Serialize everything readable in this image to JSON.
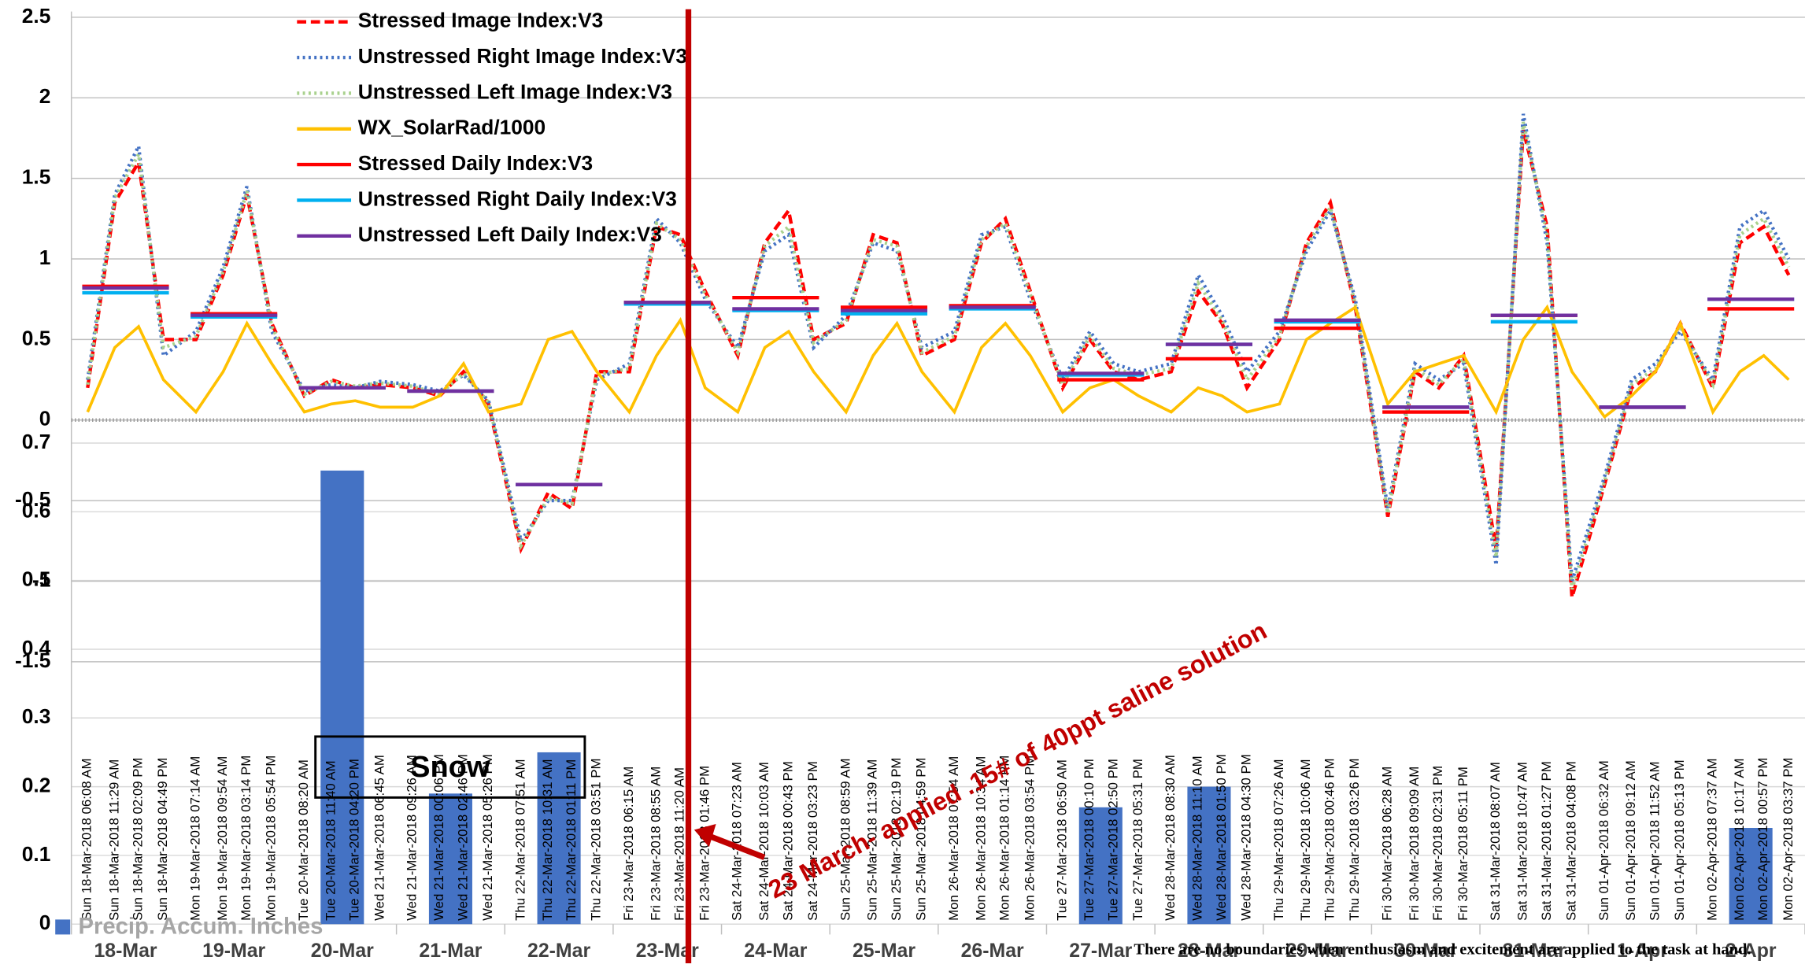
{
  "chart_data": [
    {
      "type": "line",
      "categories": [
        "Sun 18-Mar-2018 06:08 AM",
        "Sun 18-Mar-2018 11:29 AM",
        "Sun 18-Mar-2018 02:09 PM",
        "Sun 18-Mar-2018 04:49 PM",
        "Mon 19-Mar-2018 07:14 AM",
        "Mon 19-Mar-2018 09:54 AM",
        "Mon 19-Mar-2018 03:14 PM",
        "Mon 19-Mar-2018 05:54 PM",
        "Tue 20-Mar-2018 08:20 AM",
        "Tue 20-Mar-2018 11:40 AM",
        "Tue 20-Mar-2018 04:20 PM",
        "Wed 21-Mar-2018 06:45 AM",
        "Wed 21-Mar-2018 09:26 AM",
        "Wed 21-Mar-2018 00:06 PM",
        "Wed 21-Mar-2018 02:46 PM",
        "Wed 21-Mar-2018 05:26 PM",
        "Thu 22-Mar-2018 07:51 AM",
        "Thu 22-Mar-2018 10:31 AM",
        "Thu 22-Mar-2018 01:11 PM",
        "Thu 22-Mar-2018 03:51 PM",
        "Fri 23-Mar-2018 06:15 AM",
        "Fri 23-Mar-2018 08:55 AM",
        "Fri 23-Mar-2018 11:20 AM",
        "Fri 23-Mar-2018 01:46 PM",
        "Sat 24-Mar-2018 07:23 AM",
        "Sat 24-Mar-2018 10:03 AM",
        "Sat 24-Mar-2018 00:43 PM",
        "Sat 24-Mar-2018 03:23 PM",
        "Sun 25-Mar-2018 08:59 AM",
        "Sun 25-Mar-2018 11:39 AM",
        "Sun 25-Mar-2018 02:19 PM",
        "Sun 25-Mar-2018 04:59 PM",
        "Mon 26-Mar-2018 07:54 AM",
        "Mon 26-Mar-2018 10:34 AM",
        "Mon 26-Mar-2018 01:14 PM",
        "Mon 26-Mar-2018 03:54 PM",
        "Tue 27-Mar-2018 06:50 AM",
        "Tue 27-Mar-2018 00:10 PM",
        "Tue 27-Mar-2018 02:50 PM",
        "Tue 27-Mar-2018 05:31 PM",
        "Wed 28-Mar-2018 08:30 AM",
        "Wed 28-Mar-2018 11:10 AM",
        "Wed 28-Mar-2018 01:50 PM",
        "Wed 28-Mar-2018 04:30 PM",
        "Thu 29-Mar-2018 07:26 AM",
        "Thu 29-Mar-2018 10:06 AM",
        "Thu 29-Mar-2018 00:46 PM",
        "Thu 29-Mar-2018 03:26 PM",
        "Fri 30-Mar-2018 06:28 AM",
        "Fri 30-Mar-2018 09:09 AM",
        "Fri 30-Mar-2018 02:31 PM",
        "Fri 30-Mar-2018 05:11 PM",
        "Sat 31-Mar-2018 08:07 AM",
        "Sat 31-Mar-2018 10:47 AM",
        "Sat 31-Mar-2018 01:27 PM",
        "Sat 31-Mar-2018 04:08 PM",
        "Sun 01-Apr-2018 06:32 AM",
        "Sun 01-Apr-2018 09:12 AM",
        "Sun 01-Apr-2018 11:52 AM",
        "Sun 01-Apr-2018 05:13 PM",
        "Mon 02-Apr-2018 07:37 AM",
        "Mon 02-Apr-2018 10:17 AM",
        "Mon 02-Apr-2018 00:57 PM",
        "Mon 02-Apr-2018 03:37 PM"
      ],
      "ylim": [
        -1.5,
        2.5
      ],
      "yticks": [
        2.5,
        2,
        1.5,
        1,
        0.5,
        0,
        -0.5,
        -1,
        -1.5
      ],
      "grid": true,
      "series": [
        {
          "name": "Stressed Image Index:V3",
          "color": "#ff0000",
          "dash": "dashed",
          "values": [
            0.2,
            1.35,
            1.6,
            0.5,
            0.5,
            0.9,
            1.4,
            0.6,
            0.15,
            0.25,
            0.2,
            0.22,
            0.2,
            0.15,
            0.3,
            0.1,
            -0.8,
            -0.45,
            -0.55,
            0.3,
            0.3,
            1.2,
            1.15,
            0.8,
            0.4,
            1.1,
            1.3,
            0.5,
            0.6,
            1.15,
            1.1,
            0.4,
            0.5,
            1.1,
            1.25,
            0.8,
            0.2,
            0.5,
            0.3,
            0.25,
            0.3,
            0.8,
            0.6,
            0.2,
            0.5,
            1.1,
            1.35,
            0.7,
            -0.6,
            0.3,
            0.2,
            0.4,
            -0.8,
            1.8,
            1.2,
            -1.1,
            -0.4,
            0.2,
            0.3,
            0.6,
            0.2,
            1.1,
            1.2,
            0.9
          ]
        },
        {
          "name": "Unstressed Right Image Index:V3",
          "color": "#4472c4",
          "dash": "dotted",
          "values": [
            0.25,
            1.4,
            1.7,
            0.4,
            0.55,
            0.95,
            1.45,
            0.55,
            0.18,
            0.22,
            0.2,
            0.24,
            0.22,
            0.18,
            0.28,
            0.12,
            -0.75,
            -0.5,
            -0.5,
            0.25,
            0.35,
            1.25,
            1.1,
            0.75,
            0.45,
            1.05,
            1.15,
            0.45,
            0.65,
            1.1,
            1.05,
            0.45,
            0.55,
            1.15,
            1.2,
            0.75,
            0.25,
            0.55,
            0.35,
            0.3,
            0.35,
            0.9,
            0.65,
            0.3,
            0.55,
            1.05,
            1.3,
            0.75,
            -0.55,
            0.35,
            0.25,
            0.35,
            -0.9,
            1.9,
            1.1,
            -1.0,
            -0.35,
            0.25,
            0.35,
            0.55,
            0.25,
            1.2,
            1.3,
            1.0
          ]
        },
        {
          "name": "Unstressed Left Image Index:V3",
          "color": "#a9d18e",
          "dash": "dotted",
          "values": [
            0.22,
            1.38,
            1.65,
            0.45,
            0.52,
            0.92,
            1.42,
            0.58,
            0.16,
            0.24,
            0.21,
            0.23,
            0.21,
            0.16,
            0.29,
            0.11,
            -0.78,
            -0.48,
            -0.52,
            0.28,
            0.32,
            1.22,
            1.12,
            0.78,
            0.42,
            1.08,
            1.2,
            0.48,
            0.62,
            1.12,
            1.08,
            0.42,
            0.52,
            1.12,
            1.22,
            0.78,
            0.22,
            0.52,
            0.32,
            0.28,
            0.32,
            0.85,
            0.62,
            0.25,
            0.52,
            1.08,
            1.32,
            0.72,
            -0.58,
            0.32,
            0.22,
            0.38,
            -0.85,
            1.85,
            1.15,
            -1.05,
            -0.38,
            0.22,
            0.32,
            0.58,
            0.22,
            1.15,
            1.25,
            0.95
          ]
        },
        {
          "name": "WX_SolarRad/1000",
          "color": "#ffc000",
          "dash": "solid",
          "values": [
            0.05,
            0.45,
            0.58,
            0.25,
            0.05,
            0.3,
            0.6,
            0.35,
            0.05,
            0.1,
            0.12,
            0.08,
            0.08,
            0.15,
            0.35,
            0.05,
            0.1,
            0.5,
            0.55,
            0.3,
            0.05,
            0.4,
            0.62,
            0.2,
            0.05,
            0.45,
            0.55,
            0.3,
            0.05,
            0.4,
            0.6,
            0.3,
            0.05,
            0.45,
            0.6,
            0.4,
            0.05,
            0.2,
            0.25,
            0.15,
            0.05,
            0.2,
            0.15,
            0.05,
            0.1,
            0.5,
            0.6,
            0.7,
            0.1,
            0.3,
            0.35,
            0.4,
            0.05,
            0.5,
            0.7,
            0.3,
            0.02,
            0.15,
            0.3,
            0.6,
            0.05,
            0.3,
            0.4,
            0.25
          ]
        }
      ]
    },
    {
      "type": "step",
      "series": [
        {
          "name": "Stressed Daily Index:V3",
          "color": "#ff0000",
          "values": [
            0.83,
            0.66,
            0.2,
            0.18,
            -0.4,
            0.73,
            0.76,
            0.7,
            0.71,
            0.25,
            0.38,
            0.57,
            0.05,
            0.65,
            0.08,
            0.69
          ]
        },
        {
          "name": "Unstressed Right Daily Index:V3",
          "color": "#00b0f0",
          "values": [
            0.79,
            0.64,
            0.2,
            0.18,
            -0.4,
            0.72,
            0.68,
            0.66,
            0.69,
            0.28,
            0.47,
            0.61,
            0.08,
            0.61,
            0.08,
            0.75
          ]
        },
        {
          "name": "Unstressed Left Daily Index:V3",
          "color": "#7030a0",
          "values": [
            0.82,
            0.65,
            0.2,
            0.18,
            -0.4,
            0.73,
            0.69,
            0.68,
            0.7,
            0.29,
            0.47,
            0.62,
            0.08,
            0.65,
            0.08,
            0.75
          ]
        }
      ]
    },
    {
      "type": "bar",
      "categories": [
        "18-Mar",
        "19-Mar",
        "20-Mar",
        "21-Mar",
        "22-Mar",
        "23-Mar",
        "24-Mar",
        "25-Mar",
        "26-Mar",
        "27-Mar",
        "28-Mar",
        "29-Mar",
        "30-Mar",
        "31-Mar",
        "1-Apr",
        "2-Apr"
      ],
      "series": [
        {
          "name": "Precip. Accum. Inches",
          "color": "#4472c4",
          "values": [
            0,
            0,
            0.66,
            0.19,
            0.25,
            0,
            0,
            0,
            0,
            0.17,
            0.2,
            0,
            0,
            0,
            0,
            0.14
          ]
        }
      ],
      "ylim": [
        0,
        0.7
      ],
      "yticks": [
        0,
        0.1,
        0.2,
        0.3,
        0.4,
        0.5,
        0.6,
        0.7
      ],
      "grid": true
    }
  ],
  "annotations": {
    "snow": "Snow",
    "treatment": "23 March- applied .15# of 40ppt saline solution",
    "footer": "There are no boundaries when enthusiasm and excitement are applied to the task at hand."
  }
}
